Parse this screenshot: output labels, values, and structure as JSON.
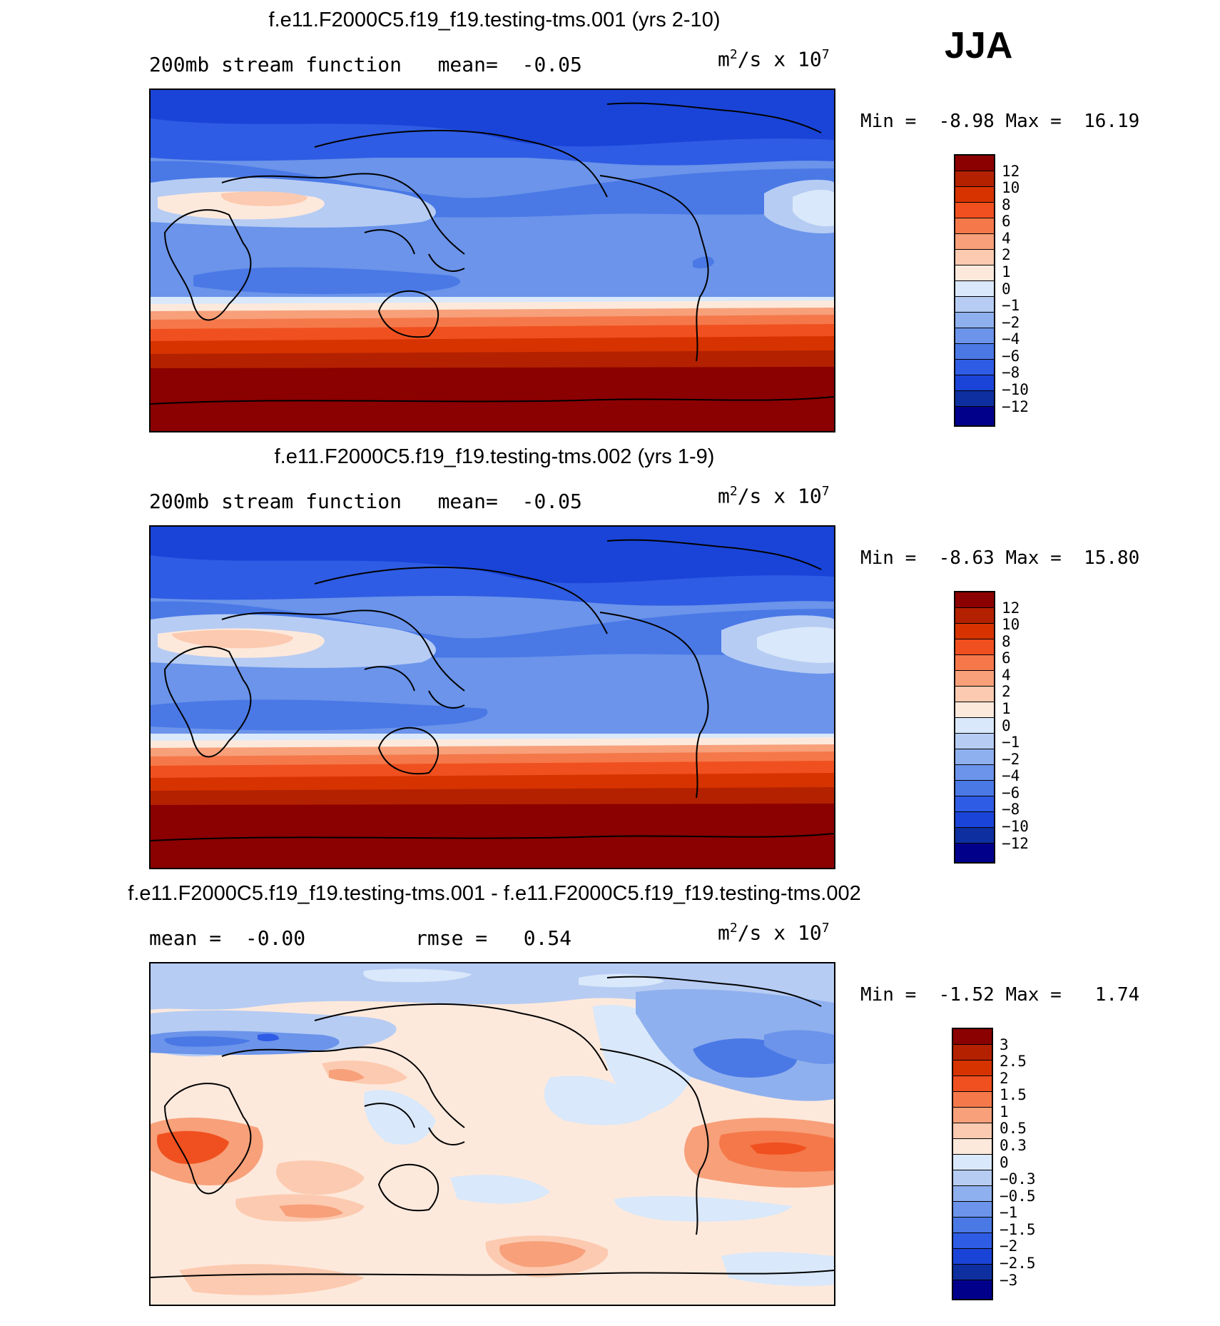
{
  "season": "JJA",
  "panels": [
    {
      "title": "f.e11.F2000C5.f19_f19.testing-tms.001 (yrs 2-10)",
      "subtitle": "200mb stream function   mean=  -0.05",
      "units": {
        "base": "m",
        "sup1": "2",
        "mid": "/s x 10",
        "sup2": "7"
      },
      "minmax": "Min =  -8.98 Max =  16.19",
      "colorbar": {
        "labels": [
          "12",
          "10",
          "8",
          "6",
          "4",
          "2",
          "1",
          "0",
          "−1",
          "−2",
          "−4",
          "−6",
          "−8",
          "−10",
          "−12"
        ],
        "colors": [
          "#8b0000",
          "#b32100",
          "#d63300",
          "#f0501f",
          "#f5784a",
          "#f7a07a",
          "#fccab0",
          "#fde9dc",
          "#d9e8fa",
          "#b6ccf3",
          "#8fb0ee",
          "#6b94ea",
          "#4a79e6",
          "#2f5ce4",
          "#1a44d8",
          "#0d2fa0",
          "#00008b"
        ]
      },
      "map": {
        "type": "stream_function",
        "colors": [
          "#1a44d8",
          "#2f5ce4",
          "#4a79e6",
          "#6b94ea",
          "#8fb0ee",
          "#b6ccf3",
          "#d9e8fa",
          "#fde9dc",
          "#fccab0",
          "#f7a07a",
          "#f5784a",
          "#f0501f",
          "#d63300",
          "#b32100",
          "#8b0000"
        ]
      }
    },
    {
      "title": "f.e11.F2000C5.f19_f19.testing-tms.002 (yrs 1-9)",
      "subtitle": "200mb stream function   mean=  -0.05",
      "units": {
        "base": "m",
        "sup1": "2",
        "mid": "/s x 10",
        "sup2": "7"
      },
      "minmax": "Min =  -8.63 Max =  15.80",
      "colorbar": {
        "labels": [
          "12",
          "10",
          "8",
          "6",
          "4",
          "2",
          "1",
          "0",
          "−1",
          "−2",
          "−4",
          "−6",
          "−8",
          "−10",
          "−12"
        ],
        "colors": [
          "#8b0000",
          "#b32100",
          "#d63300",
          "#f0501f",
          "#f5784a",
          "#f7a07a",
          "#fccab0",
          "#fde9dc",
          "#d9e8fa",
          "#b6ccf3",
          "#8fb0ee",
          "#6b94ea",
          "#4a79e6",
          "#2f5ce4",
          "#1a44d8",
          "#0d2fa0",
          "#00008b"
        ]
      }
    },
    {
      "title": "f.e11.F2000C5.f19_f19.testing-tms.001 - f.e11.F2000C5.f19_f19.testing-tms.002",
      "subtitle_left": "mean =  -0.00",
      "subtitle_right": "rmse =   0.54",
      "units": {
        "base": "m",
        "sup1": "2",
        "mid": "/s x 10",
        "sup2": "7"
      },
      "minmax": "Min =  -1.52 Max =   1.74",
      "colorbar": {
        "labels": [
          "3",
          "2.5",
          "2",
          "1.5",
          "1",
          "0.5",
          "0.3",
          "0",
          "−0.3",
          "−0.5",
          "−1",
          "−1.5",
          "−2",
          "−2.5",
          "−3"
        ],
        "colors": [
          "#8b0000",
          "#b32100",
          "#d63300",
          "#f0501f",
          "#f5784a",
          "#f7a07a",
          "#fccab0",
          "#fde9dc",
          "#d9e8fa",
          "#b6ccf3",
          "#8fb0ee",
          "#6b94ea",
          "#4a79e6",
          "#2f5ce4",
          "#1a44d8",
          "#0d2fa0",
          "#00008b"
        ]
      }
    }
  ]
}
